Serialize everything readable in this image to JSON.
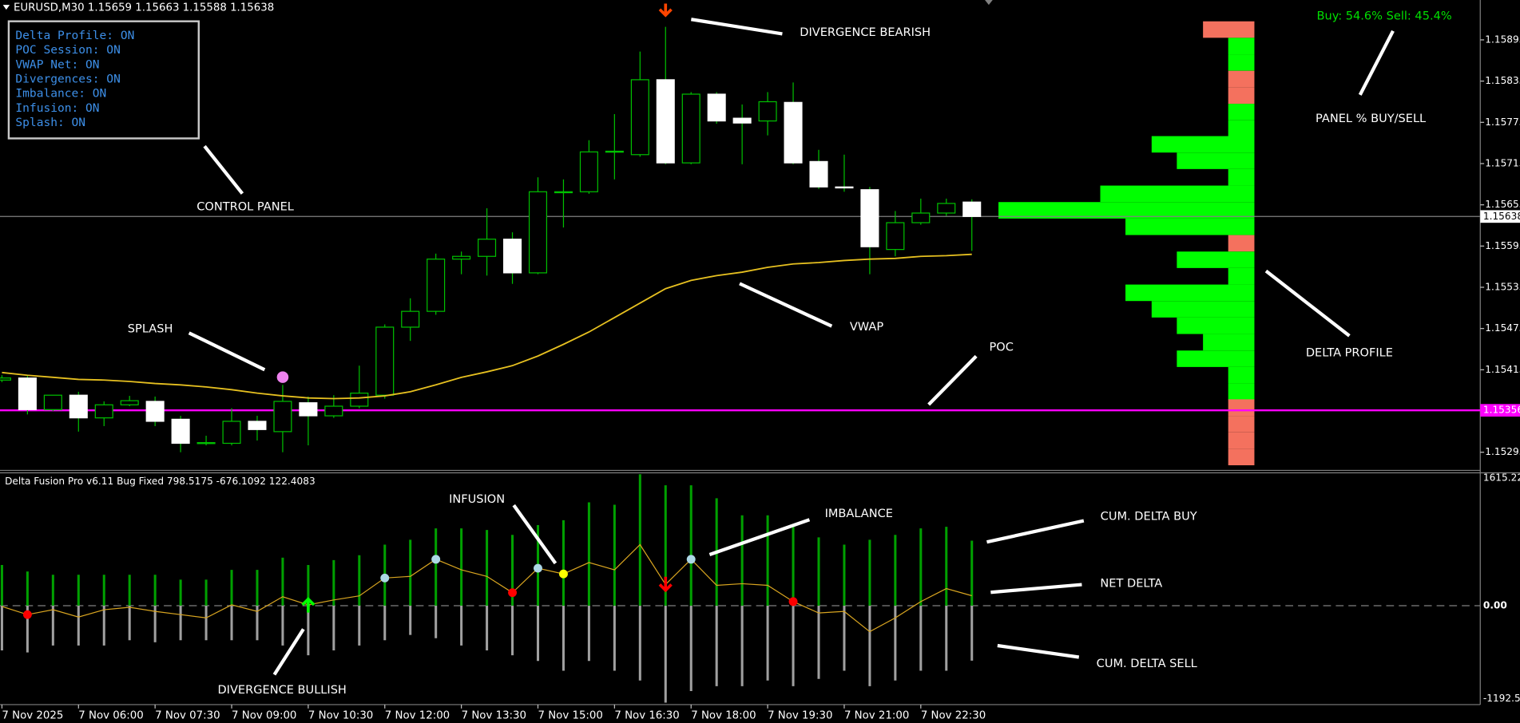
{
  "chart_data": [
    {
      "type": "candlestick",
      "title": "EURUSD,M30",
      "categories": [
        "7 Nov 2025",
        null,
        null,
        "7 Nov 06:00",
        null,
        null,
        "7 Nov 07:30",
        null,
        null,
        "7 Nov 09:00",
        null,
        null,
        "7 Nov 10:30",
        null,
        null,
        "7 Nov 12:00",
        null,
        null,
        "7 Nov 13:30",
        null,
        null,
        "7 Nov 15:00",
        null,
        null,
        "7 Nov 16:30",
        null,
        null,
        "7 Nov 18:00",
        null,
        null,
        "7 Nov 19:30",
        null,
        null,
        "7 Nov 21:00",
        null,
        null,
        "7 Nov 22:30",
        null,
        null
      ],
      "open": [
        1.154,
        1.15403,
        1.15357,
        1.15378,
        1.15345,
        1.15364,
        1.15369,
        1.15343,
        1.15308,
        1.15308,
        1.1534,
        1.15325,
        1.15367,
        1.15348,
        1.15362,
        1.15378,
        1.15477,
        1.155,
        1.15576,
        1.1558,
        1.15605,
        1.15556,
        1.15673,
        1.15674,
        1.15732,
        1.15728,
        1.15837,
        1.15716,
        1.15816,
        1.15781,
        1.15777,
        1.15804,
        1.15718,
        1.15681,
        1.15677,
        1.1559,
        1.15629,
        1.15643,
        1.15659
      ],
      "high": [
        1.15407,
        1.15407,
        1.15378,
        1.15383,
        1.15369,
        1.15377,
        1.15376,
        1.15348,
        1.15319,
        1.15359,
        1.15348,
        1.15393,
        1.15376,
        1.15378,
        1.15421,
        1.15481,
        1.15519,
        1.15584,
        1.15587,
        1.1565,
        1.15615,
        1.15695,
        1.15692,
        1.15749,
        1.15787,
        1.15878,
        1.15914,
        1.15819,
        1.15819,
        1.15801,
        1.15819,
        1.15833,
        1.15735,
        1.15728,
        1.15681,
        1.15646,
        1.15664,
        1.15664,
        1.15663
      ],
      "low": [
        1.15397,
        1.1535,
        1.15355,
        1.15325,
        1.15333,
        1.15362,
        1.15333,
        1.15295,
        1.15305,
        1.15305,
        1.15312,
        1.15295,
        1.15305,
        1.15345,
        1.15359,
        1.15373,
        1.15457,
        1.15495,
        1.15554,
        1.15552,
        1.1554,
        1.15554,
        1.15622,
        1.15671,
        1.15692,
        1.15725,
        1.15714,
        1.15714,
        1.15773,
        1.15714,
        1.15756,
        1.15714,
        1.15678,
        1.15674,
        1.15554,
        1.1558,
        1.15626,
        1.15639,
        1.15588
      ],
      "close": [
        1.15403,
        1.15357,
        1.15378,
        1.15345,
        1.15364,
        1.1537,
        1.1534,
        1.15308,
        1.15309,
        1.1534,
        1.15328,
        1.15369,
        1.15348,
        1.15362,
        1.15381,
        1.15477,
        1.155,
        1.15576,
        1.1558,
        1.15605,
        1.15556,
        1.15674,
        1.15674,
        1.15732,
        1.15733,
        1.15837,
        1.15716,
        1.15816,
        1.15777,
        1.15774,
        1.15805,
        1.15716,
        1.15681,
        1.1568,
        1.15594,
        1.15629,
        1.15643,
        1.15657,
        1.15638
      ],
      "up_color": "#000000",
      "down_color": "#ffffff",
      "wick_color": "#00c000",
      "ylim": [
        1.1527,
        1.15953
      ],
      "yticks": [
        1.15895,
        1.15835,
        1.15775,
        1.15715,
        1.15655,
        1.15595,
        1.15535,
        1.15475,
        1.15415,
        1.15295
      ],
      "poc": 1.15356,
      "poc_color": "#ff00ff",
      "vwap": {
        "color": "#e6c020",
        "values": [
          1.15411,
          1.15407,
          1.15404,
          1.15401,
          1.154,
          1.15398,
          1.15395,
          1.15393,
          1.1539,
          1.15386,
          1.15381,
          1.15377,
          1.15374,
          1.15373,
          1.15374,
          1.15377,
          1.15383,
          1.15393,
          1.15404,
          1.15412,
          1.15421,
          1.15435,
          1.15452,
          1.1547,
          1.15491,
          1.15512,
          1.15533,
          1.15545,
          1.15552,
          1.15557,
          1.15564,
          1.15569,
          1.15571,
          1.15574,
          1.15576,
          1.15577,
          1.1558,
          1.15581,
          1.15583
        ]
      },
      "splash": {
        "index": 11,
        "color": "#ee82ee"
      },
      "divergence": {
        "index": 26,
        "color": "#ff4500"
      },
      "profile": {
        "levels": [
          1.1591,
          1.15886,
          1.15862,
          1.15838,
          1.15814,
          1.1579,
          1.15766,
          1.15743,
          1.15719,
          1.15695,
          1.15671,
          1.15647,
          1.15623,
          1.15599,
          1.15575,
          1.15551,
          1.15527,
          1.15503,
          1.15479,
          1.15455,
          1.15431,
          1.15407,
          1.15383,
          1.1536,
          1.15336,
          1.15312,
          1.15288
        ],
        "values": [
          53,
          27,
          27,
          27,
          27,
          27,
          27,
          106,
          80,
          27,
          159,
          264,
          133,
          27,
          80,
          27,
          133,
          106,
          80,
          53,
          80,
          27,
          27,
          27,
          27,
          27,
          27
        ],
        "colors": [
          "#f4715e",
          "#00ff00",
          "#00ff00",
          "#f4715e",
          "#f4715e",
          "#00ff00",
          "#00ff00",
          "#00ff00",
          "#00ff00",
          "#00ff00",
          "#00ff00",
          "#00ff00",
          "#00ff00",
          "#f4715e",
          "#00ff00",
          "#00ff00",
          "#00ff00",
          "#00ff00",
          "#00ff00",
          "#00ff00",
          "#00ff00",
          "#00ff00",
          "#00ff00",
          "#f4715e",
          "#f4715e",
          "#f4715e",
          "#f4715e"
        ]
      }
    },
    {
      "type": "delta",
      "title": "Delta Fusion Pro v6.11 Bug Fixed",
      "buy": {
        "color": "#00a000",
        "values": [
          500,
          420,
          380,
          380,
          380,
          380,
          380,
          320,
          320,
          440,
          440,
          590,
          500,
          560,
          620,
          750,
          810,
          950,
          950,
          930,
          870,
          990,
          1050,
          1270,
          1240,
          1615.222,
          1480,
          1480,
          1320,
          1110,
          1110,
          990,
          840,
          750,
          810,
          870,
          950,
          970,
          798.5175
        ]
      },
      "sell": {
        "color": "#a0a0a0",
        "values": [
          -550,
          -575,
          -490,
          -490,
          -490,
          -425,
          -450,
          -425,
          -425,
          -425,
          -425,
          -490,
          -610,
          -550,
          -490,
          -425,
          -360,
          -400,
          -490,
          -550,
          -610,
          -680,
          -800,
          -680,
          -800,
          -920,
          -1192.51,
          -1050,
          -990,
          -990,
          -920,
          -990,
          -900,
          -800,
          -990,
          -920,
          -800,
          -800,
          -676.1092
        ]
      },
      "net": {
        "color": "#d9a520",
        "values": [
          -10,
          -110,
          -50,
          -140,
          -50,
          -20,
          -70,
          -110,
          -150,
          10,
          -70,
          110,
          10,
          70,
          120,
          340,
          360,
          570,
          440,
          360,
          160,
          460,
          390,
          530,
          440,
          750,
          260,
          570,
          250,
          270,
          250,
          50,
          -90,
          -70,
          -320,
          -150,
          50,
          210,
          122.4083
        ]
      },
      "ylim": [
        -1192.51,
        1615.222
      ],
      "yticks": [
        1615.222,
        {
          "value": 0,
          "label": "0.00"
        },
        -1192.51
      ],
      "markers": [
        {
          "color": "#ff0000",
          "index": [
            1,
            20,
            31
          ]
        },
        {
          "color": "#add8e6",
          "index": [
            15,
            17,
            21,
            27
          ]
        },
        {
          "color": "#ffff00",
          "index": [
            22
          ]
        }
      ],
      "arrows": [
        {
          "index": 12,
          "color": "#00ff00",
          "dir": "up"
        },
        {
          "index": 26,
          "color": "#ff0000",
          "dir": "down"
        }
      ]
    }
  ],
  "annotations": [
    "DIVERGENCE BEARISH",
    "CONTROL PANEL",
    "SPLASH",
    "VWAP",
    "POC",
    "PANEL % BUY/SELL",
    "DELTA PROFILE",
    "INFUSION",
    "IMBALANCE",
    "CUM. DELTA BUY",
    "NET DELTA",
    "CUM. DELTA SELL",
    "DIVERGENCE BULLISH"
  ],
  "control_panel": [
    "Delta Profile: ON",
    "POC Session: ON",
    "VWAP Net: ON",
    "Divergences: ON",
    "Imbalance: ON",
    "Infusion: ON",
    "Splash: ON"
  ],
  "panel_ratio": "Buy: 54.6% Sell: 45.4%"
}
